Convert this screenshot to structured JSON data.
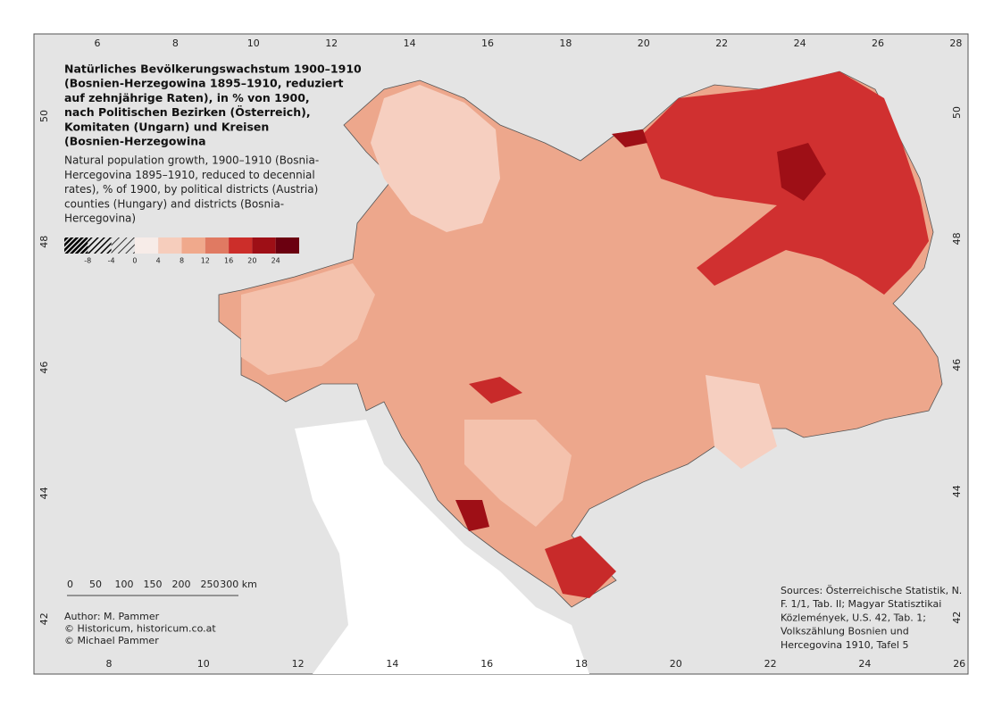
{
  "title_de": [
    "Natürliches Bevölkerungswachstum 1900–1910",
    "(Bosnien-Herzegowina 1895–1910, reduziert",
    "auf zehnjährige Raten), in % von 1900,",
    "nach Politischen Bezirken (Österreich),",
    "Komitaten (Ungarn) und Kreisen",
    "(Bosnien-Herzegowina"
  ],
  "title_en": [
    "Natural population growth, 1900–1910 (Bosnia-",
    "Hercegovina 1895–1910, reduced to decennial",
    "rates), % of 1900, by political districts (Austria)",
    "counties (Hungary) and districts (Bosnia-",
    "Hercegovina)"
  ],
  "legend": {
    "labels": [
      "-8",
      "-4",
      "0",
      "4",
      "8",
      "12",
      "16",
      "20",
      "24"
    ],
    "colors": [
      "hatch",
      "hatch",
      "hatch",
      "#f7ece8",
      "#f6cdbc",
      "#f0a98c",
      "#e07a62",
      "#cc2e2a",
      "#9e0f16",
      "#6b0010"
    ]
  },
  "top_ticks": [
    6,
    8,
    10,
    12,
    14,
    16,
    18,
    20,
    22,
    24,
    26,
    28
  ],
  "bottom_ticks": [
    8,
    10,
    12,
    14,
    16,
    18,
    20,
    22,
    24,
    26
  ],
  "left_ticks": [
    50,
    48,
    46,
    44,
    42
  ],
  "right_ticks": [
    50,
    48,
    46,
    44,
    42
  ],
  "scale": [
    "0",
    "50",
    "100",
    "150",
    "200",
    "250",
    "300 km"
  ],
  "author": [
    "Author: M. Pammer",
    "© Historicum, historicum.co.at",
    "© Michael Pammer"
  ],
  "sources": [
    "Sources: Österreichische Statistik, N.",
    "F. 1/1, Tab. II; Magyar Statisztikai",
    "Közlemények, U.S. 42, Tab. 1;",
    "Volkszählung Bosnien und",
    "Hercegovina 1910, Tafel 5"
  ]
}
